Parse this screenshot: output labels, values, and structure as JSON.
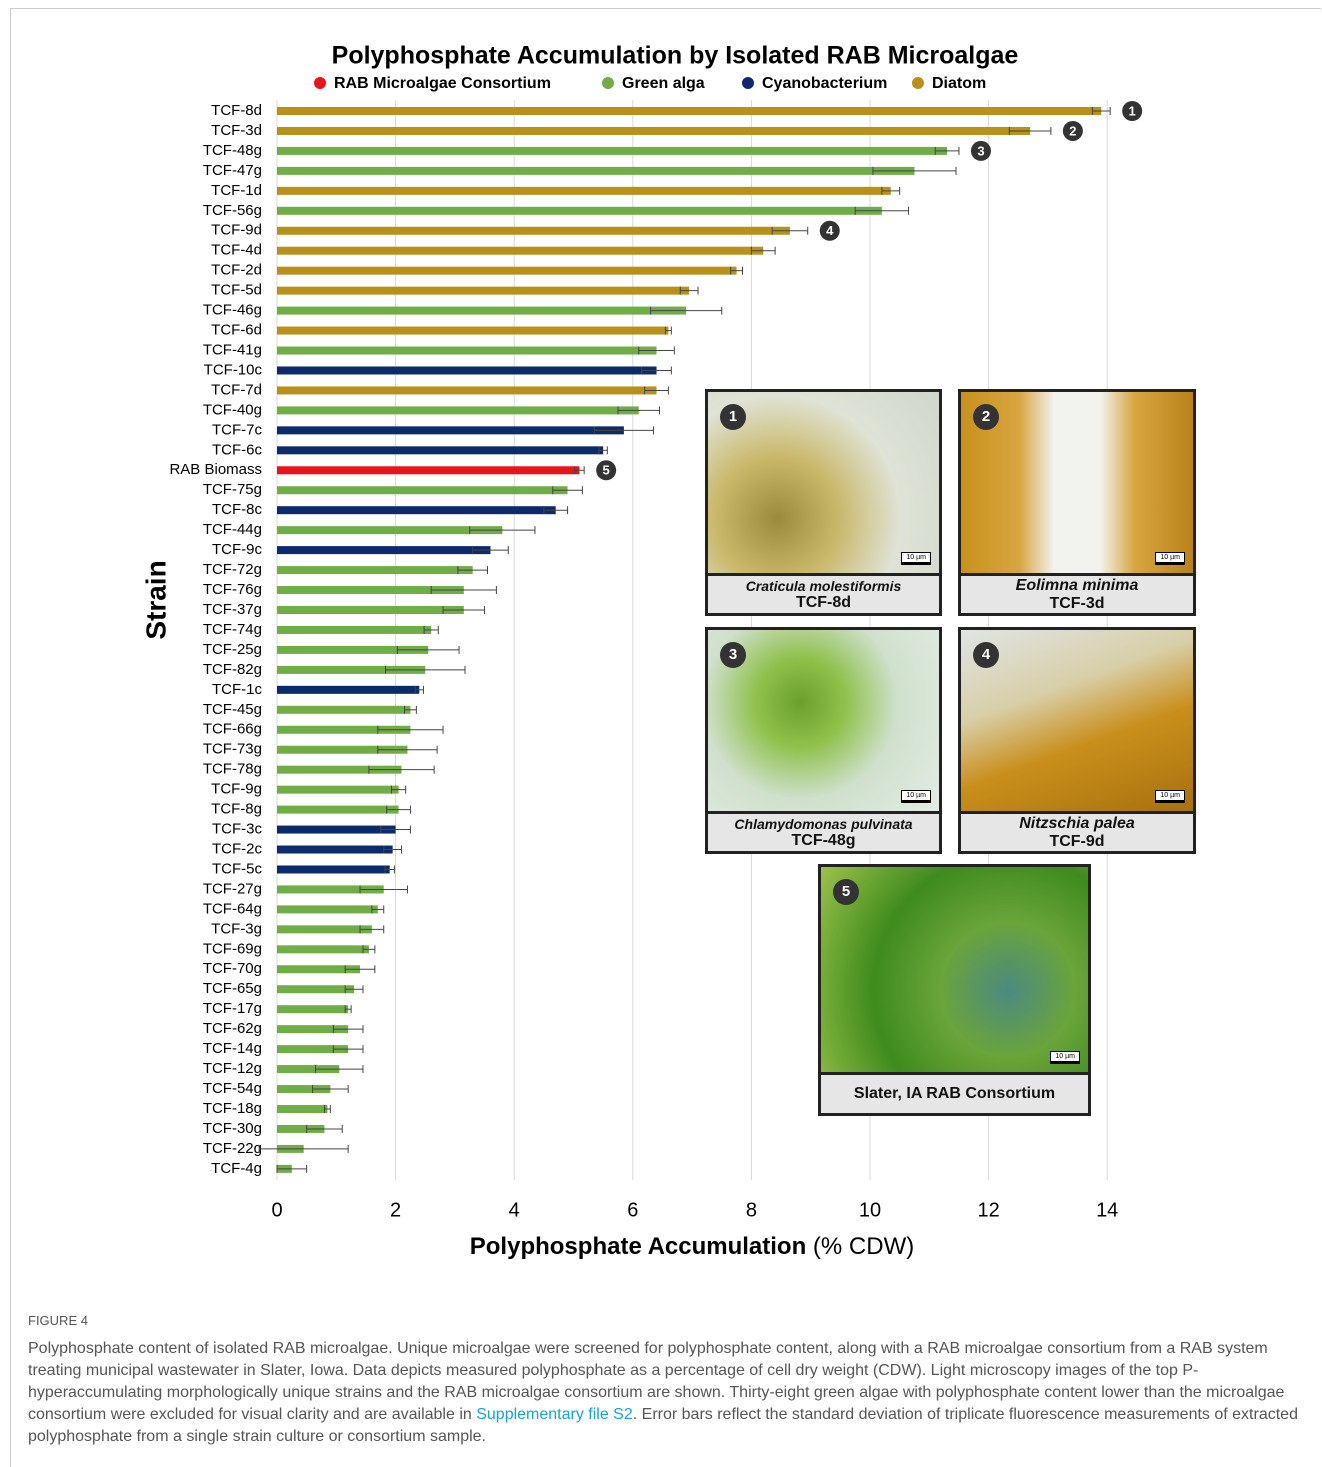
{
  "chart_data": {
    "type": "bar",
    "orientation": "horizontal",
    "title": "Polyphosphate Accumulation by Isolated RAB Microalgae",
    "y_label": "Strain",
    "x_label": {
      "main": "Polyphosphate Accumulation",
      "unit": "(% CDW)"
    },
    "categories": [
      "TCF-8d",
      "TCF-3d",
      "TCF-48g",
      "TCF-47g",
      "TCF-1d",
      "TCF-56g",
      "TCF-9d",
      "TCF-4d",
      "TCF-2d",
      "TCF-5d",
      "TCF-46g",
      "TCF-6d",
      "TCF-41g",
      "TCF-10c",
      "TCF-7d",
      "TCF-40g",
      "TCF-7c",
      "TCF-6c",
      "RAB Biomass",
      "TCF-75g",
      "TCF-8c",
      "TCF-44g",
      "TCF-9c",
      "TCF-72g",
      "TCF-76g",
      "TCF-37g",
      "TCF-74g",
      "TCF-25g",
      "TCF-82g",
      "TCF-1c",
      "TCF-45g",
      "TCF-66g",
      "TCF-73g",
      "TCF-78g",
      "TCF-9g",
      "TCF-8g",
      "TCF-3c",
      "TCF-2c",
      "TCF-5c",
      "TCF-27g",
      "TCF-64g",
      "TCF-3g",
      "TCF-69g",
      "TCF-70g",
      "TCF-65g",
      "TCF-17g",
      "TCF-62g",
      "TCF-14g",
      "TCF-12g",
      "TCF-54g",
      "TCF-18g",
      "TCF-30g",
      "TCF-22g",
      "TCF-4g"
    ],
    "series": [
      {
        "name": "RAB Microalgae Consortium",
        "color": "#e8141a",
        "values": [
          null,
          null,
          null,
          null,
          null,
          null,
          null,
          null,
          null,
          null,
          null,
          null,
          null,
          null,
          null,
          null,
          null,
          null,
          5.1,
          null,
          null,
          null,
          null,
          null,
          null,
          null,
          null,
          null,
          null,
          null,
          null,
          null,
          null,
          null,
          null,
          null,
          null,
          null,
          null,
          null,
          null,
          null,
          null,
          null,
          null,
          null,
          null,
          null,
          null,
          null,
          null,
          null,
          null,
          null
        ],
        "errors": [
          null,
          null,
          null,
          null,
          null,
          null,
          null,
          null,
          null,
          null,
          null,
          null,
          null,
          null,
          null,
          null,
          null,
          null,
          0.08,
          null,
          null,
          null,
          null,
          null,
          null,
          null,
          null,
          null,
          null,
          null,
          null,
          null,
          null,
          null,
          null,
          null,
          null,
          null,
          null,
          null,
          null,
          null,
          null,
          null,
          null,
          null,
          null,
          null,
          null,
          null,
          null,
          null,
          null,
          null
        ]
      },
      {
        "name": "Green alga",
        "color": "#70ad47",
        "values": [
          null,
          null,
          11.3,
          10.75,
          null,
          10.2,
          null,
          null,
          null,
          null,
          6.9,
          null,
          6.4,
          null,
          null,
          6.1,
          null,
          null,
          null,
          4.9,
          null,
          3.8,
          null,
          3.3,
          3.15,
          3.15,
          2.6,
          2.55,
          2.5,
          null,
          2.25,
          2.25,
          2.2,
          2.1,
          2.05,
          2.05,
          null,
          null,
          null,
          1.8,
          1.7,
          1.6,
          1.55,
          1.4,
          1.3,
          1.2,
          1.2,
          1.2,
          1.05,
          0.9,
          0.85,
          0.8,
          0.45,
          0.25
        ],
        "errors": [
          null,
          null,
          0.2,
          0.7,
          null,
          0.45,
          null,
          null,
          null,
          null,
          0.6,
          null,
          0.3,
          null,
          null,
          0.35,
          null,
          null,
          null,
          0.25,
          null,
          0.55,
          null,
          0.25,
          0.55,
          0.35,
          0.12,
          0.52,
          0.67,
          null,
          0.1,
          0.55,
          0.5,
          0.55,
          0.12,
          0.2,
          null,
          null,
          null,
          0.4,
          0.1,
          0.2,
          0.1,
          0.25,
          0.15,
          0.05,
          0.25,
          0.25,
          0.4,
          0.3,
          0.05,
          0.3,
          0.75,
          0.25
        ]
      },
      {
        "name": "Cyanobacterium",
        "color": "#0d2b6b",
        "values": [
          null,
          null,
          null,
          null,
          null,
          null,
          null,
          null,
          null,
          null,
          null,
          null,
          null,
          6.4,
          null,
          null,
          5.85,
          5.5,
          null,
          null,
          4.7,
          null,
          3.6,
          null,
          null,
          null,
          null,
          null,
          null,
          2.4,
          null,
          null,
          null,
          null,
          null,
          null,
          2.0,
          1.95,
          1.9,
          null,
          null,
          null,
          null,
          null,
          null,
          null,
          null,
          null,
          null,
          null,
          null,
          null,
          null,
          null
        ],
        "errors": [
          null,
          null,
          null,
          null,
          null,
          null,
          null,
          null,
          null,
          null,
          null,
          null,
          null,
          0.25,
          null,
          null,
          0.5,
          0.07,
          null,
          null,
          0.2,
          null,
          0.3,
          null,
          null,
          null,
          null,
          null,
          null,
          0.07,
          null,
          null,
          null,
          null,
          null,
          null,
          0.25,
          0.15,
          0.08,
          null,
          null,
          null,
          null,
          null,
          null,
          null,
          null,
          null,
          null,
          null,
          null,
          null,
          null,
          null
        ]
      },
      {
        "name": "Diatom",
        "color": "#b8901a",
        "values": [
          13.9,
          12.7,
          null,
          null,
          10.35,
          null,
          8.65,
          8.2,
          7.75,
          6.95,
          null,
          6.6,
          null,
          null,
          6.4,
          null,
          null,
          null,
          null,
          null,
          null,
          null,
          null,
          null,
          null,
          null,
          null,
          null,
          null,
          null,
          null,
          null,
          null,
          null,
          null,
          null,
          null,
          null,
          null,
          null,
          null,
          null,
          null,
          null,
          null,
          null,
          null,
          null,
          null,
          null,
          null,
          null,
          null,
          null
        ],
        "errors": [
          0.15,
          0.35,
          null,
          null,
          0.15,
          null,
          0.3,
          0.2,
          0.1,
          0.15,
          null,
          0.05,
          null,
          null,
          0.2,
          null,
          null,
          null,
          null,
          null,
          null,
          null,
          null,
          null,
          null,
          null,
          null,
          null,
          null,
          null,
          null,
          null,
          null,
          null,
          null,
          null,
          null,
          null,
          null,
          null,
          null,
          null,
          null,
          null,
          null,
          null,
          null,
          null,
          null,
          null,
          null,
          null,
          null,
          null
        ]
      }
    ],
    "xlim": [
      0,
      14.5
    ],
    "xticks": [
      0,
      2,
      4,
      6,
      8,
      10,
      12,
      14
    ],
    "grid": true,
    "annotations": [
      {
        "label": "1",
        "category": "TCF-8d"
      },
      {
        "label": "2",
        "category": "TCF-3d"
      },
      {
        "label": "3",
        "category": "TCF-48g"
      },
      {
        "label": "4",
        "category": "TCF-9d"
      },
      {
        "label": "5",
        "category": "RAB Biomass"
      }
    ]
  },
  "panels": [
    {
      "number": "1",
      "species": "Craticula molestiformis",
      "strain": "TCF-8d",
      "scale": "10 µm"
    },
    {
      "number": "2",
      "species": "Eolimna minima",
      "strain": "TCF-3d",
      "scale": "10 µm"
    },
    {
      "number": "3",
      "species": "Chlamydomonas pulvinata",
      "strain": "TCF-48g",
      "scale": "10 µm"
    },
    {
      "number": "4",
      "species": "Nitzschia palea",
      "strain": "TCF-9d",
      "scale": "10 µm"
    },
    {
      "number": "5",
      "caption": "Slater, IA RAB Consortium",
      "scale": "10 µm"
    }
  ],
  "figure": {
    "label": "FIGURE 4",
    "text_before": "Polyphosphate content of isolated RAB microalgae. Unique microalgae were screened for polyphosphate content, along with a RAB microalgae consortium from a RAB system treating municipal wastewater in Slater, Iowa. Data depicts measured polyphosphate as a percentage of cell dry weight (CDW). Light microscopy images of the top P-hyperaccumulating morphologically unique strains and the RAB microalgae consortium are shown. Thirty-eight green algae with polyphosphate content lower than the microalgae consortium were excluded for visual clarity and are available in ",
    "link": "Supplementary file S2",
    "text_after": ". Error bars reflect the standard deviation of triplicate fluorescence measurements of extracted polyphosphate from a single strain culture or consortium sample."
  }
}
